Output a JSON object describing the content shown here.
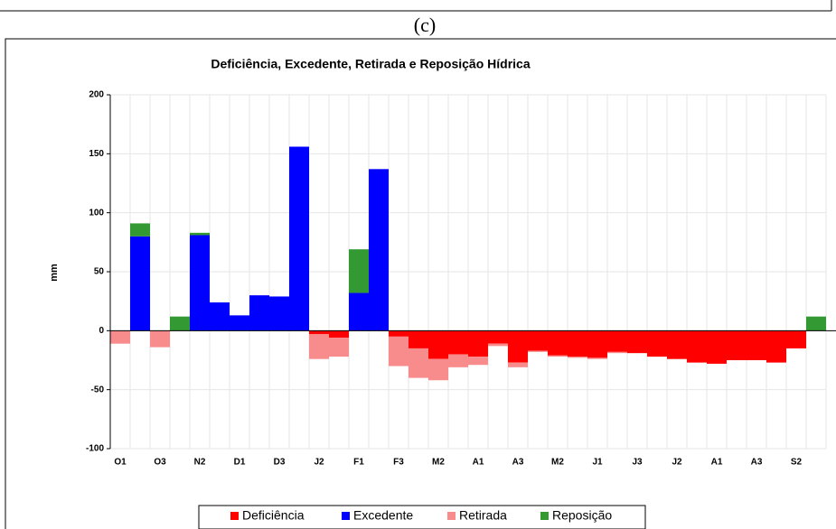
{
  "figure_label": "(c)",
  "chart_data": {
    "type": "stacked-bar",
    "title": "Deficiência, Excedente, Retirada e Reposição Hídrica",
    "ylabel": "mm",
    "categories": [
      "O1",
      null,
      "O3",
      null,
      "N2",
      null,
      "D1",
      null,
      "D3",
      null,
      "J2",
      null,
      "F1",
      null,
      "F3",
      null,
      "M2",
      null,
      "A1",
      null,
      "A3",
      null,
      "M2",
      null,
      "J1",
      null,
      "J3",
      null,
      "J2",
      null,
      "A1",
      null,
      "A3",
      null,
      "S2",
      null
    ],
    "series": [
      {
        "name": "Deficiência",
        "color": "#ff0000",
        "values": [
          0,
          0,
          0,
          0,
          0,
          0,
          0,
          0,
          0,
          0,
          -3,
          -6,
          0,
          0,
          -5,
          -15,
          -24,
          -20,
          -22,
          -11,
          -27,
          -17,
          -21,
          -22,
          -23,
          -18,
          -19,
          -22,
          -24,
          -27,
          -28,
          -25,
          -25,
          -27,
          -15,
          0
        ]
      },
      {
        "name": "Excedente",
        "color": "#0000ff",
        "values": [
          0,
          80,
          0,
          0,
          81,
          24,
          13,
          30,
          29,
          156,
          0,
          0,
          32,
          137,
          0,
          0,
          0,
          0,
          0,
          0,
          0,
          0,
          0,
          0,
          0,
          0,
          0,
          0,
          0,
          0,
          0,
          0,
          0,
          0,
          0,
          0
        ]
      },
      {
        "name": "Retirada",
        "color": "#f88c8c",
        "values": [
          -11,
          0,
          -14,
          0,
          0,
          0,
          0,
          0,
          0,
          0,
          -21,
          -16,
          0,
          0,
          -25,
          -25,
          -18,
          -11,
          -7,
          -2,
          -4,
          -1,
          -1,
          -1,
          -1,
          -1,
          0,
          0,
          0,
          0,
          0,
          0,
          0,
          0,
          0,
          0
        ]
      },
      {
        "name": "Reposição",
        "color": "#339933",
        "values": [
          0,
          11,
          0,
          12,
          2,
          0,
          0,
          0,
          0,
          0,
          0,
          0,
          37,
          0,
          0,
          0,
          0,
          0,
          0,
          0,
          0,
          0,
          0,
          0,
          0,
          0,
          0,
          0,
          0,
          0,
          0,
          0,
          0,
          0,
          0,
          12
        ]
      }
    ],
    "ylim": [
      -100,
      200
    ],
    "yticks": [
      -100,
      -50,
      0,
      50,
      100,
      150,
      200
    ],
    "grid": true,
    "legend": "bottom"
  }
}
